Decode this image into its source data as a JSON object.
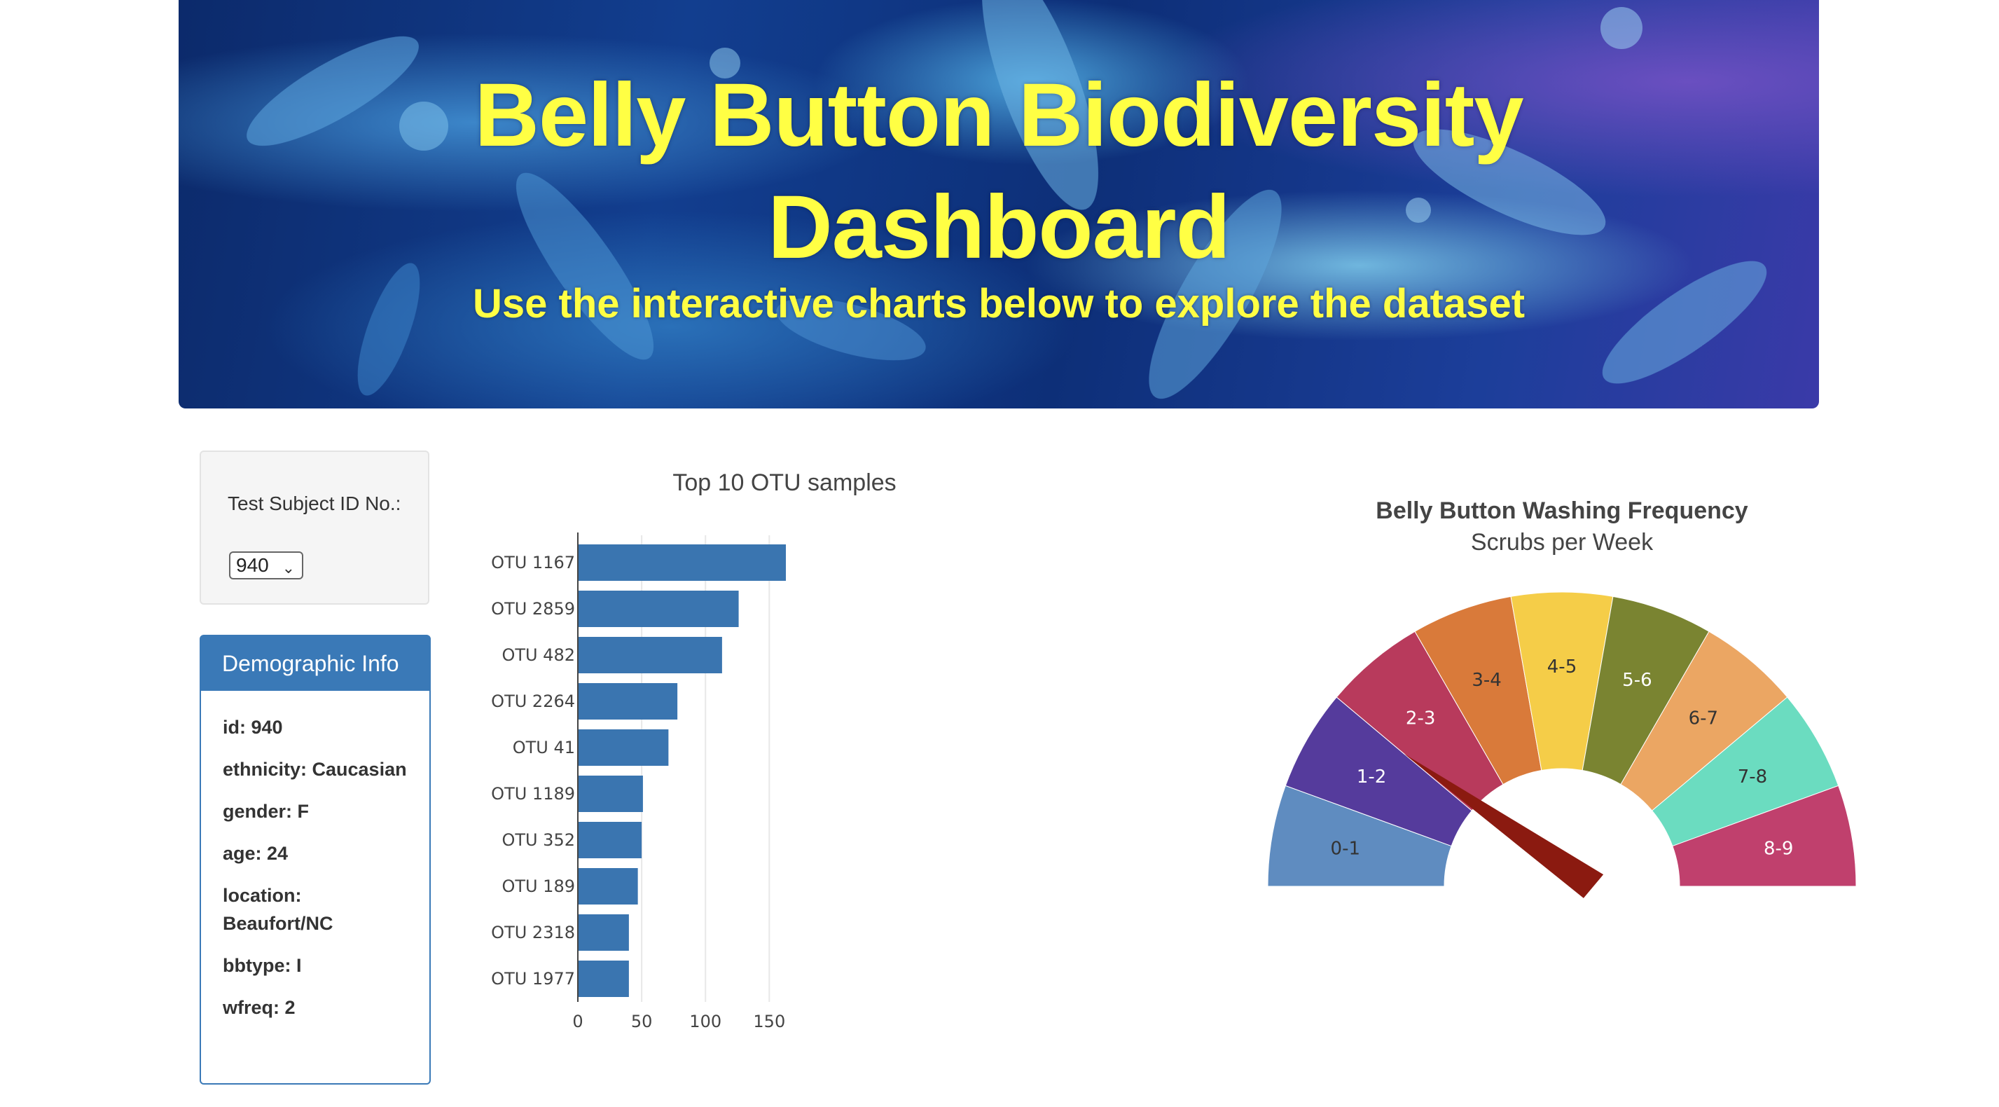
{
  "banner": {
    "title_line1": "Belly Button Biodiversity",
    "title_line2": "Dashboard",
    "subtitle": "Use the interactive charts below to explore the dataset"
  },
  "selector": {
    "label": "Test Subject ID No.:",
    "selected_value": "940",
    "chevron_icon": "chevron-down-icon"
  },
  "demographic": {
    "heading": "Demographic Info",
    "rows": [
      "id: 940",
      "ethnicity: Caucasian",
      "gender: F",
      "age: 24",
      "location: Beaufort/NC",
      "bbtype: I",
      "wfreq: 2"
    ]
  },
  "colors": {
    "bar": "#3a75b0",
    "panel_header": "#3a79b7",
    "title_yellow": "#ffff44",
    "needle": "#8b1a10"
  },
  "chart_data": [
    {
      "type": "bar",
      "orientation": "horizontal",
      "title": "Top 10 OTU samples",
      "categories": [
        "OTU 1167",
        "OTU 2859",
        "OTU 482",
        "OTU 2264",
        "OTU 41",
        "OTU 1189",
        "OTU 352",
        "OTU 189",
        "OTU 2318",
        "OTU 1977"
      ],
      "values": [
        163,
        126,
        113,
        78,
        71,
        51,
        50,
        47,
        40,
        40
      ],
      "x_ticks": [
        "0",
        "50",
        "100",
        "150"
      ],
      "xlim": [
        0,
        163
      ],
      "grid": true,
      "xlabel": "",
      "ylabel": ""
    },
    {
      "type": "gauge",
      "title": "Belly Button Washing Frequency",
      "subtitle": "Scrubs per Week",
      "segments": [
        "0-1",
        "1-2",
        "2-3",
        "3-4",
        "4-5",
        "5-6",
        "6-7",
        "7-8",
        "8-9"
      ],
      "segment_colors": [
        "#5f8cc0",
        "#553b9c",
        "#b83a5c",
        "#d97a3a",
        "#f5cd48",
        "#7a8431",
        "#eba663",
        "#6bdcc0",
        "#c0406d"
      ],
      "range": [
        0,
        9
      ],
      "value": 2
    }
  ]
}
